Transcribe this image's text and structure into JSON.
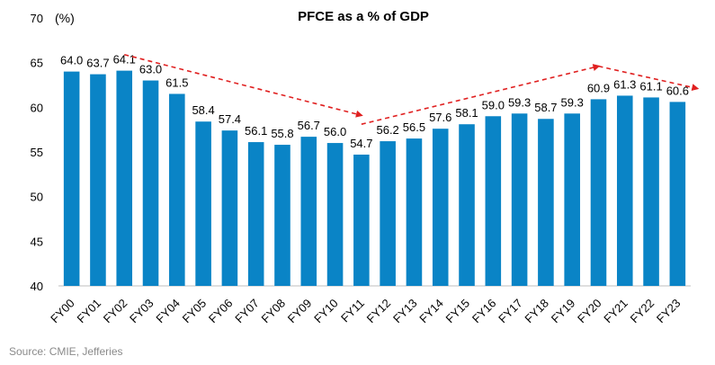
{
  "chart_data": {
    "type": "bar",
    "title": "PFCE as a % of GDP",
    "unit_label": "(%)",
    "categories": [
      "FY00",
      "FY01",
      "FY02",
      "FY03",
      "FY04",
      "FY05",
      "FY06",
      "FY07",
      "FY08",
      "FY09",
      "FY10",
      "FY11",
      "FY12",
      "FY13",
      "FY14",
      "FY15",
      "FY16",
      "FY17",
      "FY18",
      "FY19",
      "FY20",
      "FY21",
      "FY22",
      "FY23"
    ],
    "values": [
      64.0,
      63.7,
      64.1,
      63.0,
      61.5,
      58.4,
      57.4,
      56.1,
      55.8,
      56.7,
      56.0,
      54.7,
      56.2,
      56.5,
      57.6,
      58.1,
      59.0,
      59.3,
      58.7,
      59.3,
      60.9,
      61.3,
      61.1,
      60.6
    ],
    "value_labels": [
      "64.0",
      "63.7",
      "64.1",
      "63.0",
      "61.5",
      "58.4",
      "57.4",
      "56.1",
      "55.8",
      "56.7",
      "56.0",
      "54.7",
      "56.2",
      "56.5",
      "57.6",
      "58.1",
      "59.0",
      "59.3",
      "58.7",
      "59.3",
      "60.9",
      "61.3",
      "61.1",
      "60.6"
    ],
    "ylim": [
      40,
      70
    ],
    "yticks": [
      "40",
      "45",
      "50",
      "55",
      "60",
      "65",
      "70"
    ],
    "bar_color": "#0a84c6",
    "trend_color": "#e02020",
    "trend_arrows": [
      {
        "from_category": "FY02",
        "to_category": "FY11",
        "from_value": 65.9,
        "to_value": 59.1
      },
      {
        "from_category": "FY11",
        "to_category": "FY20",
        "from_value": 58.1,
        "to_value": 64.6
      },
      {
        "from_category": "FY20",
        "to_category": "FY23",
        "from_value": 64.6,
        "to_value": 62.1
      }
    ],
    "xlabel": "",
    "ylabel": "",
    "grid": false
  },
  "footer": {
    "source": "Source: CMIE, Jefferies"
  }
}
